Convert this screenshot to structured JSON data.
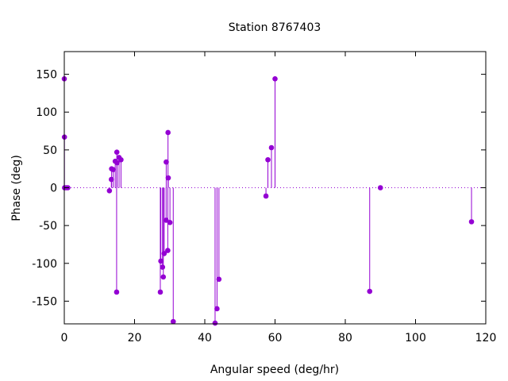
{
  "chart_data": {
    "type": "scatter",
    "title": "Station 8767403",
    "xlabel": "Angular speed (deg/hr)",
    "ylabel": "Phase (deg)",
    "xlim": [
      0,
      120
    ],
    "ylim": [
      -180,
      180
    ],
    "xticks": [
      0,
      20,
      40,
      60,
      80,
      100,
      120
    ],
    "yticks": [
      -150,
      -100,
      -50,
      0,
      50,
      100,
      150
    ],
    "grid": false,
    "zero_line": "dotted",
    "style": "impulses-with-points",
    "color": "#9400d3",
    "points": [
      {
        "x": 0.0,
        "y": 144
      },
      {
        "x": 0.04,
        "y": 67
      },
      {
        "x": 0.08,
        "y": 0
      },
      {
        "x": 0.55,
        "y": 0
      },
      {
        "x": 1.0,
        "y": 0
      },
      {
        "x": 12.85,
        "y": -4
      },
      {
        "x": 13.4,
        "y": 11
      },
      {
        "x": 13.47,
        "y": 25
      },
      {
        "x": 13.94,
        "y": 24
      },
      {
        "x": 14.5,
        "y": 35
      },
      {
        "x": 14.9,
        "y": -138
      },
      {
        "x": 14.96,
        "y": 47
      },
      {
        "x": 15.04,
        "y": 33
      },
      {
        "x": 15.59,
        "y": 40
      },
      {
        "x": 16.14,
        "y": 37
      },
      {
        "x": 27.34,
        "y": -138
      },
      {
        "x": 27.48,
        "y": -97
      },
      {
        "x": 27.97,
        "y": -105
      },
      {
        "x": 28.2,
        "y": -118
      },
      {
        "x": 28.44,
        "y": -87
      },
      {
        "x": 28.99,
        "y": -43
      },
      {
        "x": 29.02,
        "y": 34
      },
      {
        "x": 29.46,
        "y": -83
      },
      {
        "x": 29.53,
        "y": 73
      },
      {
        "x": 29.6,
        "y": 13
      },
      {
        "x": 30.08,
        "y": -46
      },
      {
        "x": 31.02,
        "y": -177
      },
      {
        "x": 42.93,
        "y": -179
      },
      {
        "x": 43.48,
        "y": -160
      },
      {
        "x": 44.03,
        "y": -121
      },
      {
        "x": 57.42,
        "y": -11
      },
      {
        "x": 57.97,
        "y": 37
      },
      {
        "x": 58.98,
        "y": 53
      },
      {
        "x": 60.0,
        "y": 144
      },
      {
        "x": 86.95,
        "y": -137
      },
      {
        "x": 90.0,
        "y": 0
      },
      {
        "x": 115.94,
        "y": -45
      }
    ]
  }
}
